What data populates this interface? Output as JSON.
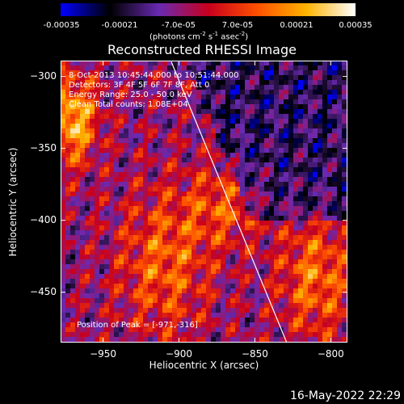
{
  "colorbar": {
    "ticks": [
      "-0.00035",
      "-0.00021",
      "-7.0e-05",
      "7.0e-05",
      "0.00021",
      "0.00035"
    ],
    "unit_text": "(photons cm",
    "unit_sup1": "-2",
    "unit_mid": " s",
    "unit_sup2": "-1",
    "unit_end": " asec",
    "unit_sup3": "-2",
    "unit_close": ")",
    "colors": [
      "#0000ff",
      "#000000",
      "#6a2ab2",
      "#c8001e",
      "#ff5000",
      "#ffb400",
      "#ffffff"
    ]
  },
  "chart_data": {
    "type": "heatmap",
    "title": "Reconstructed RHESSI Image",
    "xlabel": "Heliocentric X (arcsec)",
    "ylabel": "Heliocentric Y (arcsec)",
    "xlim": [
      -978,
      -789
    ],
    "ylim": [
      -485,
      -289
    ],
    "xticks": [
      -950,
      -900,
      -850,
      -800
    ],
    "yticks": [
      -300,
      -350,
      -400,
      -450
    ],
    "color_range": [
      -0.00035,
      0.00035
    ],
    "limb_line": {
      "x": [
        -905,
        -829
      ],
      "y": [
        -290,
        -485
      ]
    },
    "annotations": {
      "time": "8-Oct-2013 10:45:44.000 to 10:51:44.000",
      "detectors": "Detectors: 3F 4F 5F 6F 7F 8F, Att 0",
      "energy": "Energy Range: 25.0 - 50.0 keV",
      "method_counts": "Clean    Total counts: 1.08E+04",
      "peak": "Position of Peak = [-971,-316]"
    },
    "peak_position": [
      -971,
      -316
    ]
  },
  "footer": {
    "timestamp": "16-May-2022 22:29"
  }
}
